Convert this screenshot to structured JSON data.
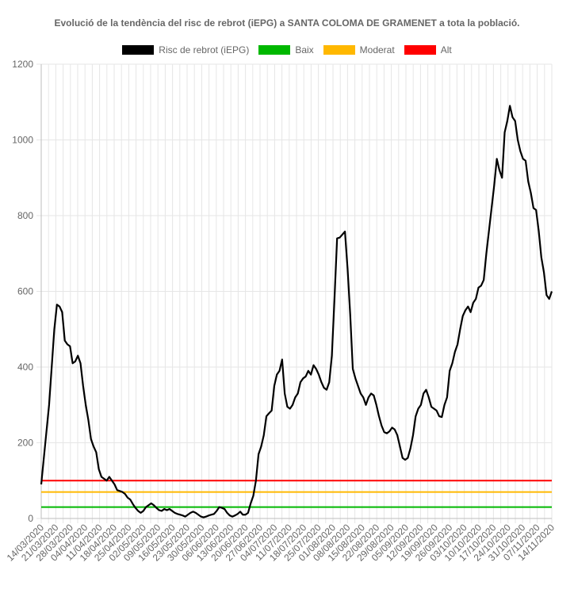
{
  "chart_data": {
    "type": "line",
    "title": "Evolució de la tendència del risc de rebrot (iEPG) a SANTA COLOMA DE GRAMENET a tota la població.",
    "xlabel": "",
    "ylabel": "",
    "ylim": [
      0,
      1200
    ],
    "yticks": [
      "0",
      "200",
      "400",
      "600",
      "800",
      "1000",
      "1200"
    ],
    "grid": true,
    "legend_position": "top",
    "xtick_labels": [
      "14/03/2020",
      "21/03/2020",
      "28/03/2020",
      "04/04/2020",
      "11/04/2020",
      "18/04/2020",
      "25/04/2020",
      "02/05/2020",
      "09/05/2020",
      "16/05/2020",
      "23/05/2020",
      "30/05/2020",
      "06/06/2020",
      "13/06/2020",
      "20/06/2020",
      "27/06/2020",
      "04/07/2020",
      "11/07/2020",
      "18/07/2020",
      "25/07/2020",
      "01/08/2020",
      "08/08/2020",
      "15/08/2020",
      "22/08/2020",
      "29/08/2020",
      "05/09/2020",
      "12/09/2020",
      "19/09/2020",
      "26/09/2020",
      "03/10/2020",
      "10/10/2020",
      "17/10/2020",
      "24/10/2020",
      "31/10/2020",
      "07/11/2020",
      "14/11/2020"
    ],
    "series": [
      {
        "name": "Risc de rebrot (iEPG)",
        "color": "#000000",
        "points": [
          [
            0,
            90
          ],
          [
            3,
            300
          ],
          [
            5,
            500
          ],
          [
            6,
            565
          ],
          [
            7,
            560
          ],
          [
            8,
            545
          ],
          [
            9,
            470
          ],
          [
            10,
            460
          ],
          [
            11,
            455
          ],
          [
            12,
            410
          ],
          [
            13,
            415
          ],
          [
            14,
            430
          ],
          [
            15,
            410
          ],
          [
            16,
            350
          ],
          [
            17,
            300
          ],
          [
            18,
            260
          ],
          [
            19,
            210
          ],
          [
            20,
            190
          ],
          [
            21,
            175
          ],
          [
            22,
            130
          ],
          [
            23,
            110
          ],
          [
            24,
            105
          ],
          [
            25,
            100
          ],
          [
            26,
            110
          ],
          [
            27,
            100
          ],
          [
            28,
            90
          ],
          [
            29,
            75
          ],
          [
            31,
            70
          ],
          [
            32,
            65
          ],
          [
            33,
            55
          ],
          [
            34,
            50
          ],
          [
            35,
            38
          ],
          [
            36,
            28
          ],
          [
            37,
            20
          ],
          [
            38,
            15
          ],
          [
            39,
            20
          ],
          [
            40,
            30
          ],
          [
            41,
            35
          ],
          [
            42,
            40
          ],
          [
            43,
            35
          ],
          [
            44,
            28
          ],
          [
            45,
            22
          ],
          [
            46,
            20
          ],
          [
            47,
            25
          ],
          [
            48,
            22
          ],
          [
            49,
            25
          ],
          [
            50,
            20
          ],
          [
            51,
            15
          ],
          [
            52,
            12
          ],
          [
            53,
            10
          ],
          [
            54,
            8
          ],
          [
            55,
            5
          ],
          [
            56,
            10
          ],
          [
            57,
            15
          ],
          [
            58,
            18
          ],
          [
            59,
            15
          ],
          [
            60,
            10
          ],
          [
            61,
            5
          ],
          [
            62,
            3
          ],
          [
            63,
            5
          ],
          [
            64,
            8
          ],
          [
            65,
            10
          ],
          [
            66,
            12
          ],
          [
            67,
            20
          ],
          [
            68,
            30
          ],
          [
            69,
            28
          ],
          [
            70,
            25
          ],
          [
            71,
            15
          ],
          [
            72,
            8
          ],
          [
            73,
            5
          ],
          [
            74,
            8
          ],
          [
            75,
            12
          ],
          [
            76,
            18
          ],
          [
            77,
            10
          ],
          [
            78,
            10
          ],
          [
            79,
            15
          ],
          [
            80,
            40
          ],
          [
            81,
            60
          ],
          [
            82,
            100
          ],
          [
            83,
            170
          ],
          [
            84,
            190
          ],
          [
            85,
            220
          ],
          [
            86,
            270
          ],
          [
            87,
            278
          ],
          [
            88,
            285
          ],
          [
            89,
            350
          ],
          [
            90,
            380
          ],
          [
            91,
            390
          ],
          [
            92,
            420
          ],
          [
            93,
            330
          ],
          [
            94,
            295
          ],
          [
            95,
            290
          ],
          [
            96,
            300
          ],
          [
            97,
            320
          ],
          [
            98,
            330
          ],
          [
            99,
            360
          ],
          [
            100,
            370
          ],
          [
            101,
            375
          ],
          [
            102,
            390
          ],
          [
            103,
            380
          ],
          [
            104,
            405
          ],
          [
            105,
            395
          ],
          [
            106,
            380
          ],
          [
            107,
            360
          ],
          [
            108,
            345
          ],
          [
            109,
            340
          ],
          [
            110,
            360
          ],
          [
            111,
            430
          ],
          [
            112,
            580
          ],
          [
            113,
            740
          ],
          [
            114,
            742
          ],
          [
            115,
            750
          ],
          [
            116,
            758
          ],
          [
            117,
            660
          ],
          [
            118,
            540
          ],
          [
            119,
            395
          ],
          [
            120,
            370
          ],
          [
            121,
            350
          ],
          [
            122,
            330
          ],
          [
            123,
            320
          ],
          [
            124,
            300
          ],
          [
            125,
            320
          ],
          [
            126,
            330
          ],
          [
            127,
            325
          ],
          [
            128,
            300
          ],
          [
            129,
            270
          ],
          [
            130,
            245
          ],
          [
            131,
            228
          ],
          [
            132,
            225
          ],
          [
            133,
            230
          ],
          [
            134,
            240
          ],
          [
            135,
            235
          ],
          [
            136,
            220
          ],
          [
            137,
            190
          ],
          [
            138,
            160
          ],
          [
            139,
            155
          ],
          [
            140,
            160
          ],
          [
            141,
            185
          ],
          [
            142,
            220
          ],
          [
            143,
            270
          ],
          [
            144,
            290
          ],
          [
            145,
            300
          ],
          [
            146,
            330
          ],
          [
            147,
            340
          ],
          [
            148,
            320
          ],
          [
            149,
            295
          ],
          [
            150,
            290
          ],
          [
            151,
            285
          ],
          [
            152,
            270
          ],
          [
            153,
            268
          ],
          [
            154,
            300
          ],
          [
            155,
            320
          ],
          [
            156,
            390
          ],
          [
            157,
            410
          ],
          [
            158,
            440
          ],
          [
            159,
            460
          ],
          [
            160,
            500
          ],
          [
            161,
            535
          ],
          [
            162,
            550
          ],
          [
            163,
            560
          ],
          [
            164,
            545
          ],
          [
            165,
            570
          ],
          [
            166,
            580
          ],
          [
            167,
            610
          ],
          [
            168,
            615
          ],
          [
            169,
            630
          ],
          [
            170,
            700
          ],
          [
            171,
            760
          ],
          [
            172,
            820
          ],
          [
            173,
            880
          ],
          [
            174,
            950
          ],
          [
            175,
            920
          ],
          [
            176,
            900
          ],
          [
            177,
            1020
          ],
          [
            178,
            1050
          ],
          [
            179,
            1090
          ],
          [
            180,
            1060
          ],
          [
            181,
            1050
          ],
          [
            182,
            1000
          ],
          [
            183,
            970
          ],
          [
            184,
            950
          ],
          [
            185,
            945
          ],
          [
            186,
            890
          ],
          [
            187,
            860
          ],
          [
            188,
            820
          ],
          [
            189,
            815
          ],
          [
            190,
            760
          ],
          [
            191,
            690
          ],
          [
            192,
            650
          ],
          [
            193,
            590
          ],
          [
            194,
            580
          ],
          [
            195,
            600
          ]
        ]
      },
      {
        "name": "Baix",
        "color": "#00b800",
        "value": 30
      },
      {
        "name": "Moderat",
        "color": "#ffb800",
        "value": 70
      },
      {
        "name": "Alt",
        "color": "#ff0000",
        "value": 100
      }
    ]
  }
}
